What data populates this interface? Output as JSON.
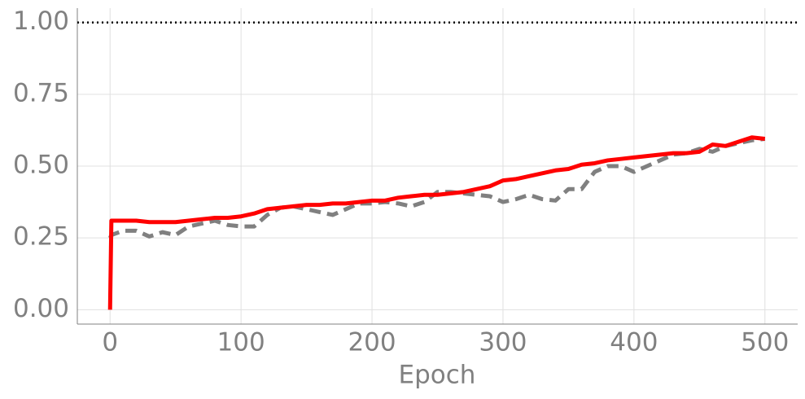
{
  "chart_data": {
    "type": "line",
    "x_label": "Epoch",
    "x": [
      0,
      1,
      10,
      20,
      30,
      40,
      50,
      60,
      70,
      80,
      90,
      100,
      110,
      120,
      130,
      140,
      150,
      160,
      170,
      180,
      190,
      200,
      210,
      220,
      230,
      240,
      250,
      260,
      270,
      280,
      290,
      300,
      310,
      320,
      330,
      340,
      350,
      360,
      370,
      380,
      390,
      400,
      410,
      420,
      430,
      440,
      450,
      460,
      470,
      480,
      490,
      500
    ],
    "series": [
      {
        "color": "#ff0000",
        "dash": "solid",
        "values": [
          0.0,
          0.31,
          0.31,
          0.31,
          0.305,
          0.305,
          0.305,
          0.31,
          0.315,
          0.32,
          0.32,
          0.325,
          0.335,
          0.35,
          0.355,
          0.36,
          0.365,
          0.365,
          0.37,
          0.37,
          0.375,
          0.38,
          0.38,
          0.39,
          0.395,
          0.4,
          0.4,
          0.405,
          0.41,
          0.42,
          0.43,
          0.45,
          0.455,
          0.465,
          0.475,
          0.485,
          0.49,
          0.505,
          0.51,
          0.52,
          0.525,
          0.53,
          0.535,
          0.54,
          0.545,
          0.545,
          0.55,
          0.575,
          0.57,
          0.585,
          0.6,
          0.595
        ]
      },
      {
        "color": "#808080",
        "dash": "dashed",
        "values": [
          0.25,
          0.26,
          0.275,
          0.275,
          0.255,
          0.27,
          0.26,
          0.29,
          0.3,
          0.31,
          0.295,
          0.29,
          0.29,
          0.33,
          0.355,
          0.36,
          0.35,
          0.34,
          0.33,
          0.35,
          0.37,
          0.37,
          0.375,
          0.37,
          0.36,
          0.375,
          0.41,
          0.41,
          0.405,
          0.4,
          0.395,
          0.375,
          0.385,
          0.4,
          0.385,
          0.38,
          0.42,
          0.42,
          0.48,
          0.5,
          0.5,
          0.48,
          0.5,
          0.52,
          0.54,
          0.545,
          0.56,
          0.55,
          0.57,
          0.58,
          0.59,
          0.595
        ]
      }
    ],
    "hline": {
      "value": 1,
      "color": "#000000"
    },
    "xlim": [
      -25,
      525
    ],
    "ylim": [
      -0.05,
      1.05
    ],
    "xticks": [
      0,
      100,
      200,
      300,
      400,
      500
    ],
    "yticks": [
      {
        "value": 0,
        "label": "0.00"
      },
      {
        "value": 0.25,
        "label": "0.25"
      },
      {
        "value": 0.5,
        "label": "0.50"
      },
      {
        "value": 0.75,
        "label": "0.75"
      },
      {
        "value": 1,
        "label": "1.00"
      }
    ],
    "grid": true
  }
}
